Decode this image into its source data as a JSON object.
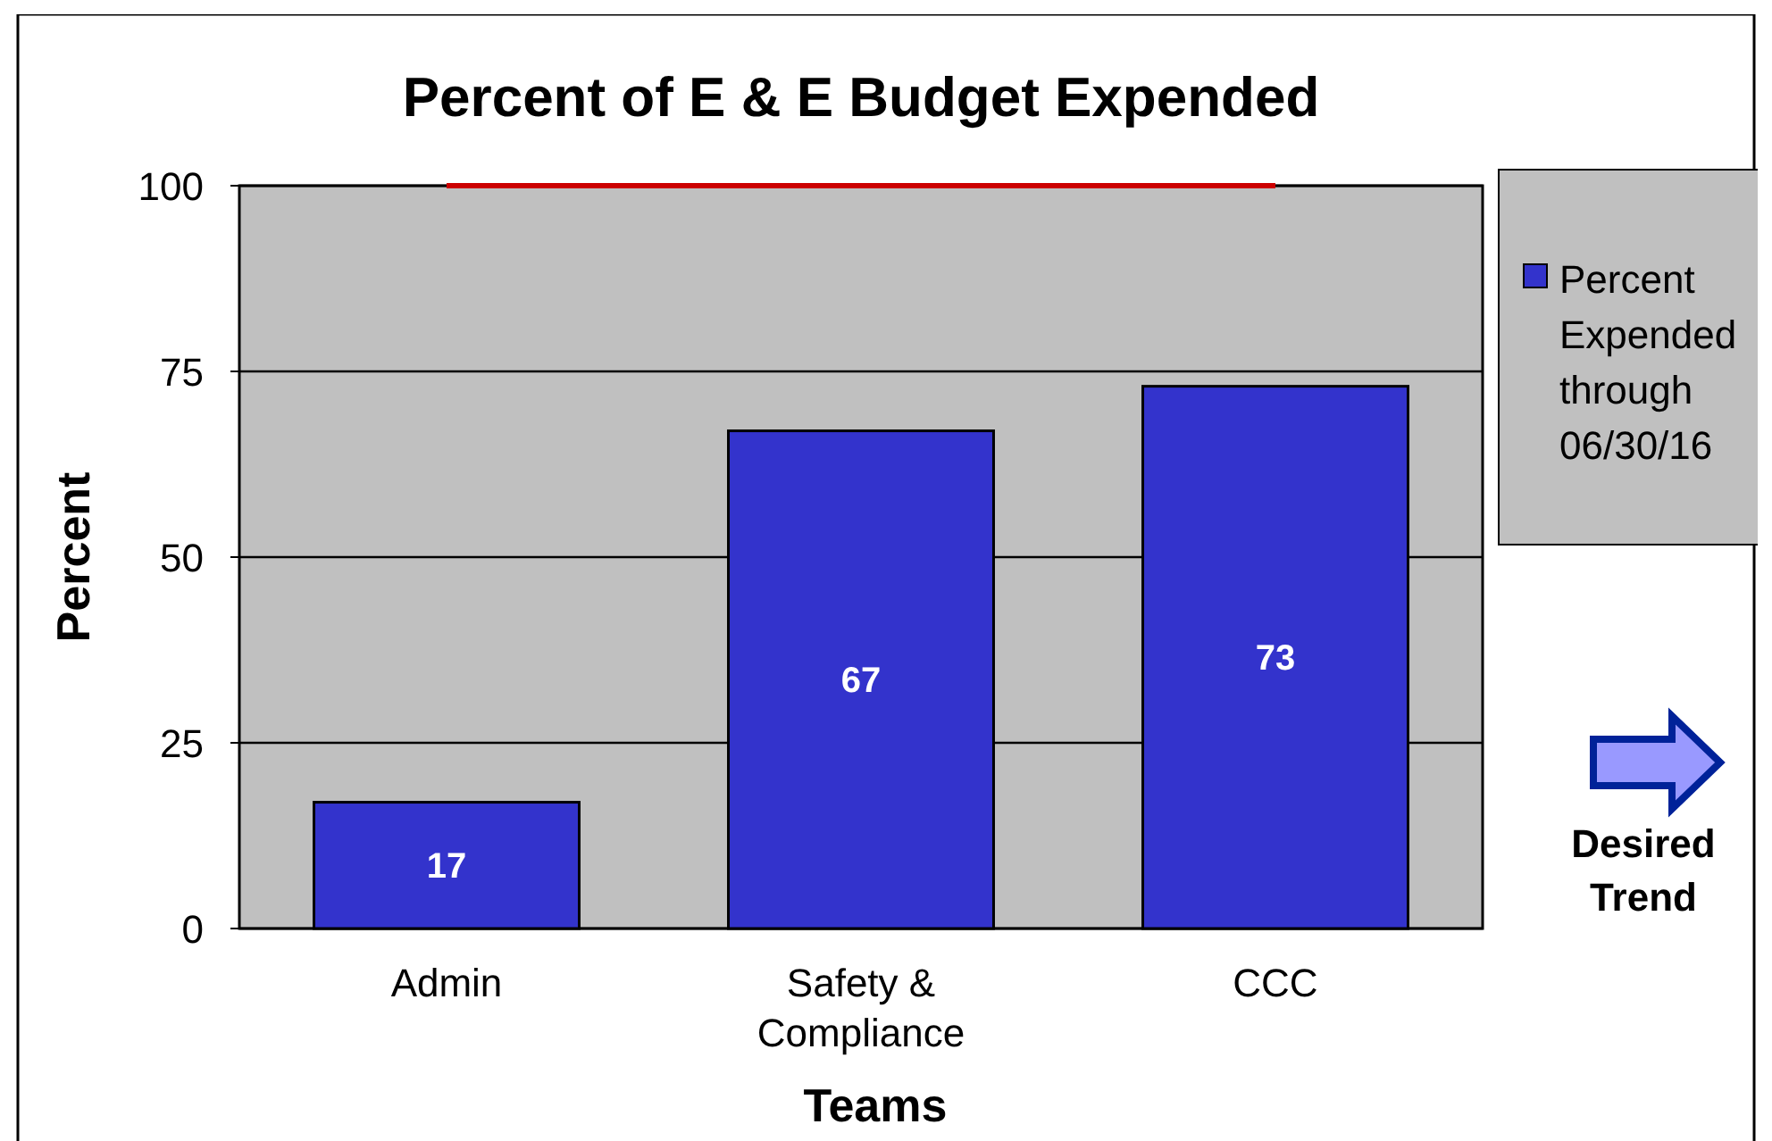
{
  "chart_data": {
    "type": "bar",
    "title": "Percent of E & E Budget Expended",
    "xlabel": "Teams",
    "ylabel": "Percent",
    "categories": [
      "Admin",
      "Safety & Compliance",
      "CCC"
    ],
    "series": [
      {
        "name": "Percent Expended through 06/30/16",
        "color": "#3333cc",
        "values": [
          17,
          67,
          73
        ],
        "value_labels": [
          "17",
          "67",
          "73"
        ]
      },
      {
        "type": "line",
        "color": "#cc0000",
        "values": [
          100,
          100,
          100
        ]
      }
    ],
    "ylim": [
      0,
      100
    ],
    "yticks": [
      0,
      25,
      50,
      75,
      100
    ],
    "grid": "y",
    "legend": "top right",
    "marker": "none",
    "annotations": [
      "Desired Trend"
    ]
  }
}
